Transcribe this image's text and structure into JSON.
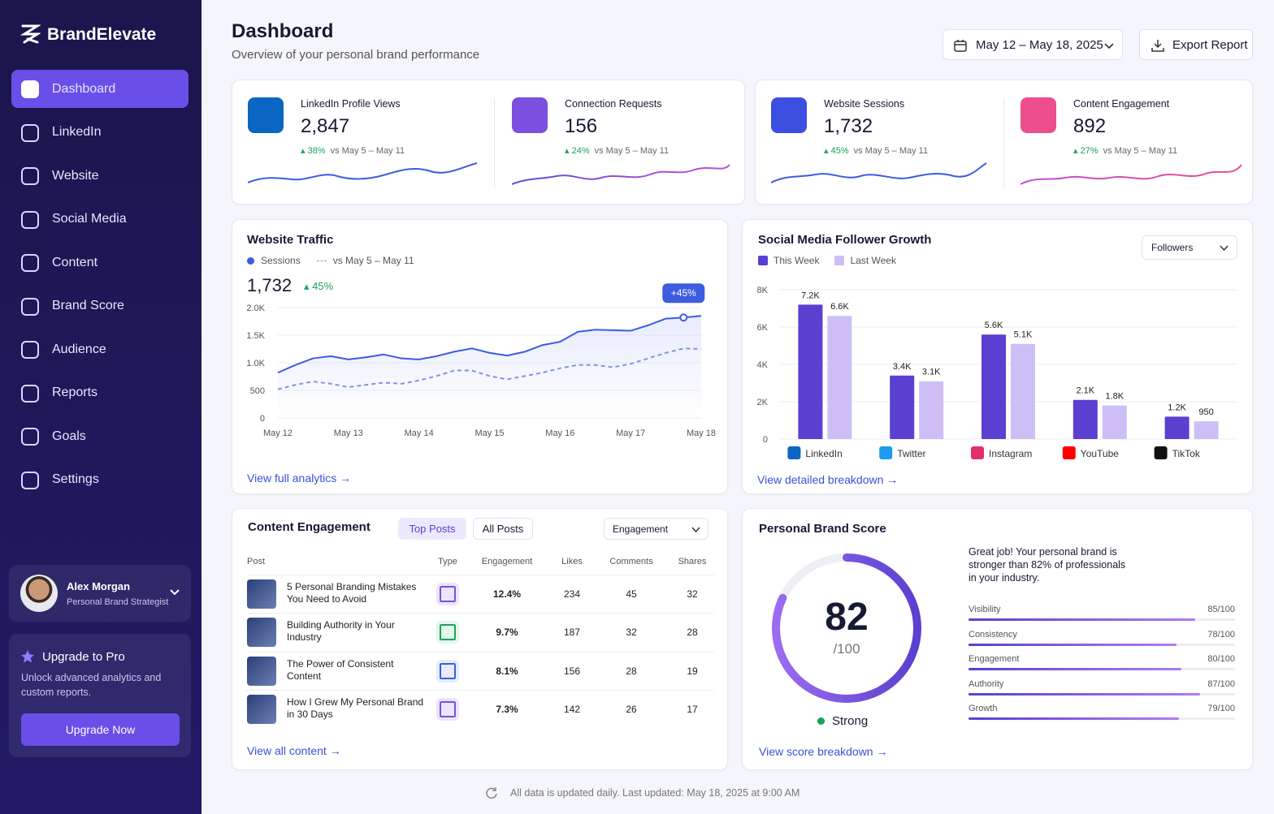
{
  "brand": "BrandElevate",
  "nav": [
    "Dashboard",
    "LinkedIn",
    "Website",
    "Social Media",
    "Content",
    "Brand Score",
    "Audience",
    "Reports",
    "Goals",
    "Settings"
  ],
  "user": {
    "name": "Alex Morgan",
    "role": "Personal Brand Strategist"
  },
  "upgrade": {
    "title": "Upgrade to Pro",
    "text": "Unlock advanced analytics and custom reports.",
    "button": "Upgrade Now"
  },
  "header": {
    "title": "Dashboard",
    "subtitle": "Overview of your personal brand performance",
    "date_range": "May 12 – May 18, 2025",
    "export": "Export Report"
  },
  "kpis": [
    {
      "label": "LinkedIn Profile Views",
      "value": "2,847",
      "change": "38%",
      "compare": "vs May 5 – May 11"
    },
    {
      "label": "Connection Requests",
      "value": "156",
      "change": "24%",
      "compare": "vs May 5 – May 11"
    },
    {
      "label": "Website Sessions",
      "value": "1,732",
      "change": "45%",
      "compare": "vs May 5 – May 11"
    },
    {
      "label": "Content Engagement",
      "value": "892",
      "change": "27%",
      "compare": "vs May 5 – May 11"
    }
  ],
  "chart_data": [
    {
      "type": "line",
      "title": "Website Traffic",
      "headline": "1,732",
      "change": "45%",
      "annotation": "+45%",
      "link": "View full analytics",
      "categories": [
        "May 12",
        null,
        null,
        null,
        "May 13",
        null,
        null,
        null,
        "May 14",
        null,
        null,
        null,
        "May 15",
        null,
        null,
        null,
        "May 16",
        null,
        null,
        null,
        "May 17",
        null,
        null,
        null,
        "May 18"
      ],
      "series": [
        {
          "name": "Sessions",
          "color": "#3d5ce0",
          "style": "solid",
          "values": [
            820,
            960,
            1080,
            1120,
            1060,
            1100,
            1150,
            1080,
            1060,
            1120,
            1200,
            1260,
            1180,
            1130,
            1200,
            1320,
            1380,
            1560,
            1600,
            1590,
            1580,
            1680,
            1800,
            1820,
            1850
          ]
        },
        {
          "name": "vs May 5 – May 11",
          "color": "#7d93e8",
          "style": "dashed",
          "values": [
            520,
            600,
            660,
            620,
            560,
            600,
            640,
            620,
            680,
            760,
            860,
            860,
            760,
            700,
            760,
            820,
            900,
            960,
            960,
            920,
            980,
            1080,
            1180,
            1260,
            1250
          ]
        }
      ],
      "ylim": [
        0,
        2000
      ],
      "yticks": [
        0,
        500,
        {
          "value": 1000,
          "label": "1.0K"
        },
        {
          "value": 1500,
          "label": "1.5K"
        },
        {
          "value": 2000,
          "label": "2.0K"
        }
      ],
      "grid": true
    },
    {
      "type": "bar",
      "title": "Social Media Follower Growth",
      "dropdown": "Followers",
      "link": "View detailed breakdown",
      "categories": [
        "LinkedIn",
        "Twitter",
        "Instagram",
        "YouTube",
        "TikTok"
      ],
      "series": [
        {
          "name": "This Week",
          "color": "#5b3fd0",
          "values": [
            7200,
            3400,
            5600,
            2100,
            1200
          ],
          "value_labels": [
            "7.2K",
            "3.4K",
            "5.6K",
            "2.1K",
            "1.2K"
          ]
        },
        {
          "name": "Last Week",
          "color": "#cdbff6",
          "values": [
            6600,
            3100,
            5100,
            1800,
            950
          ],
          "value_labels": [
            "6.6K",
            "3.1K",
            "5.1K",
            "1.8K",
            "950"
          ]
        }
      ],
      "ylim": [
        0,
        8000
      ],
      "yticks": [
        0,
        {
          "value": 2000,
          "label": "2K"
        },
        {
          "value": 4000,
          "label": "4K"
        },
        {
          "value": 6000,
          "label": "6K"
        },
        {
          "value": 8000,
          "label": "8K"
        }
      ],
      "grid": true
    }
  ],
  "content": {
    "title": "Content Engagement",
    "tabs": [
      "Top Posts",
      "All Posts"
    ],
    "dropdown": "Engagement",
    "columns": [
      "Post",
      "Type",
      "Engagement",
      "Likes",
      "Comments",
      "Shares"
    ],
    "rows": [
      [
        "5 Personal Branding Mistakes You Need to Avoid",
        "12.4%",
        234,
        45,
        32
      ],
      [
        "Building Authority in Your Industry",
        "9.7%",
        187,
        32,
        28
      ],
      [
        "The Power of Consistent Content",
        "8.1%",
        156,
        28,
        19
      ],
      [
        "How I Grew My Personal Brand in 30 Days",
        "7.3%",
        142,
        26,
        17
      ]
    ],
    "link": "View all content"
  },
  "brand_score": {
    "title": "Personal Brand Score",
    "score": 82,
    "score_max": {
      "value": 100,
      "label": "/100"
    },
    "status": "Strong",
    "message": "Great job! Your personal brand is stronger than 82% of professionals in your industry.",
    "items": [
      {
        "name": "Visibility",
        "value": 85,
        "label": "85/100"
      },
      {
        "name": "Consistency",
        "value": 78,
        "label": "78/100"
      },
      {
        "name": "Engagement",
        "value": 80,
        "label": "80/100"
      },
      {
        "name": "Authority",
        "value": 87,
        "label": "87/100"
      },
      {
        "name": "Growth",
        "value": 79,
        "label": "79/100"
      }
    ],
    "link": "View score breakdown"
  },
  "footer": "All data is updated daily. Last updated: May 18, 2025 at 9:00 AM"
}
